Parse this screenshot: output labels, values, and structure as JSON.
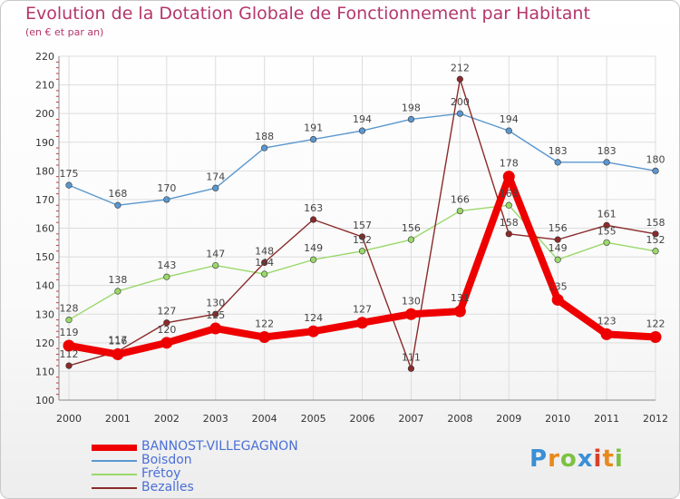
{
  "title": "Evolution de la Dotation Globale de Fonctionnement par Habitant",
  "subtitle": "(en € et par an)",
  "logo": "Proxiti",
  "chart_data": {
    "type": "line",
    "title": "Evolution de la Dotation Globale de Fonctionnement par Habitant",
    "ylabel": "(en € et par an)",
    "xlabel": "",
    "x": [
      "2000",
      "2001",
      "2002",
      "2003",
      "2004",
      "2005",
      "2006",
      "2007",
      "2008",
      "2009",
      "2010",
      "2011",
      "2012"
    ],
    "ylim": [
      100,
      220
    ],
    "yticks": [
      100,
      110,
      120,
      130,
      140,
      150,
      160,
      170,
      180,
      190,
      200,
      210,
      220
    ],
    "grid": true,
    "legend_position": "bottom-left",
    "series": [
      {
        "name": "BANNOST-VILLEGAGNON",
        "color": "#ee0000",
        "values": [
          119,
          116,
          120,
          125,
          122,
          124,
          127,
          130,
          131,
          178,
          135,
          123,
          122
        ]
      },
      {
        "name": "Boisdon",
        "color": "#5b97cf",
        "values": [
          175,
          168,
          170,
          174,
          188,
          191,
          194,
          198,
          200,
          194,
          183,
          183,
          180
        ]
      },
      {
        "name": "Frétoy",
        "color": "#9ad86a",
        "values": [
          128,
          138,
          143,
          147,
          144,
          149,
          152,
          156,
          166,
          168,
          149,
          155,
          152
        ]
      },
      {
        "name": "Bezalles",
        "color": "#8b2a2a",
        "values": [
          112,
          117,
          127,
          130,
          148,
          163,
          157,
          111,
          212,
          158,
          156,
          161,
          158
        ]
      }
    ]
  }
}
